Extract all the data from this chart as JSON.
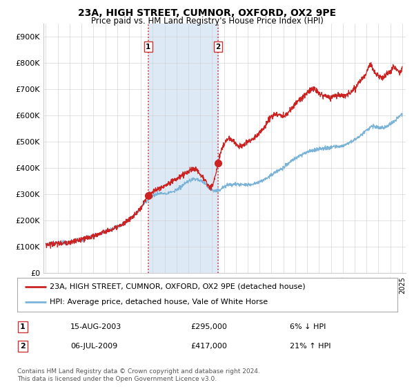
{
  "title": "23A, HIGH STREET, CUMNOR, OXFORD, OX2 9PE",
  "subtitle": "Price paid vs. HM Land Registry's House Price Index (HPI)",
  "legend_line1": "23A, HIGH STREET, CUMNOR, OXFORD, OX2 9PE (detached house)",
  "legend_line2": "HPI: Average price, detached house, Vale of White Horse",
  "transaction1_date": "15-AUG-2003",
  "transaction1_price": "£295,000",
  "transaction1_hpi": "6% ↓ HPI",
  "transaction2_date": "06-JUL-2009",
  "transaction2_price": "£417,000",
  "transaction2_hpi": "21% ↑ HPI",
  "footer": "Contains HM Land Registry data © Crown copyright and database right 2024.\nThis data is licensed under the Open Government Licence v3.0.",
  "hpi_color": "#7ab3d8",
  "price_color": "#cc2222",
  "marker_color": "#cc2222",
  "shade_color": "#ddeaf5",
  "vline_color": "#cc3333",
  "background_color": "#ffffff",
  "grid_color": "#cccccc",
  "ylim": [
    0,
    950000
  ],
  "yticks": [
    0,
    100000,
    200000,
    300000,
    400000,
    500000,
    600000,
    700000,
    800000,
    900000
  ],
  "ytick_labels": [
    "£0",
    "£100K",
    "£200K",
    "£300K",
    "£400K",
    "£500K",
    "£600K",
    "£700K",
    "£800K",
    "£900K"
  ],
  "xlim_start": 1994.8,
  "xlim_end": 2025.3,
  "transaction1_x": 2003.62,
  "transaction2_x": 2009.5,
  "transaction1_y": 295000,
  "transaction2_y": 417000
}
